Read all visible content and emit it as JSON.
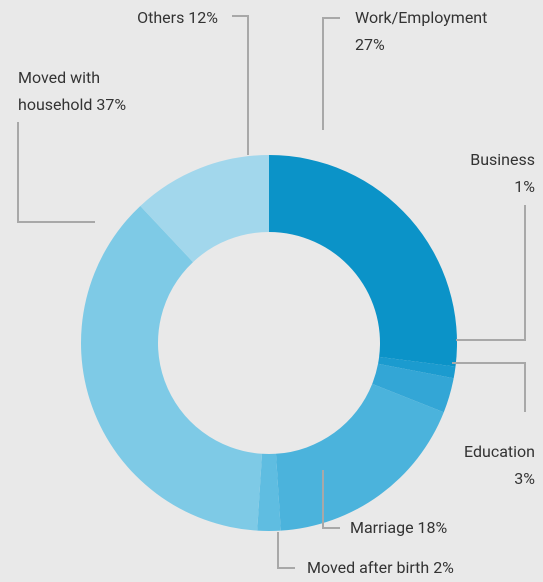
{
  "chart_data": {
    "type": "donut",
    "categories": [
      "Work/Employment",
      "Business",
      "Education",
      "Marriage",
      "Moved after birth",
      "Moved with household",
      "Others"
    ],
    "values": [
      27,
      1,
      3,
      18,
      2,
      37,
      12
    ],
    "value_labels": [
      "27%",
      "1%",
      "3%",
      "18%",
      "2%",
      "37%",
      "12%"
    ],
    "colors": [
      "#0b93c8",
      "#1b9bcf",
      "#33a6d6",
      "#4bb3dc",
      "#5fbde1",
      "#7ecae6",
      "#a2d7ec"
    ]
  }
}
